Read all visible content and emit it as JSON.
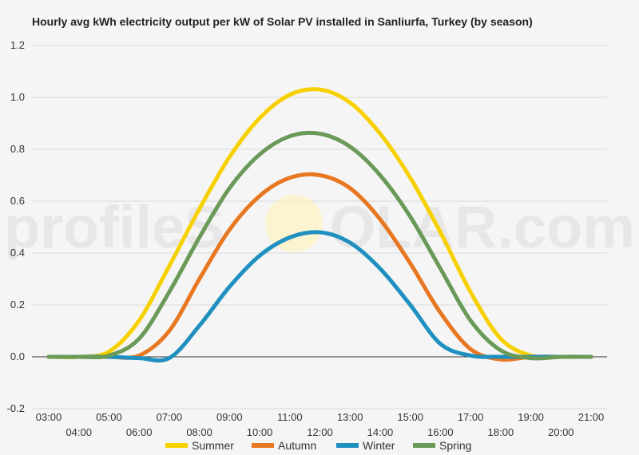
{
  "chart_data": {
    "type": "line",
    "title": "Hourly avg kWh electricity output per kW of Solar PV installed in Sanliurfa, Turkey (by season)",
    "watermark": "profileSOLAR.com",
    "x": [
      "03:00",
      "04:00",
      "05:00",
      "06:00",
      "07:00",
      "08:00",
      "09:00",
      "10:00",
      "11:00",
      "12:00",
      "13:00",
      "14:00",
      "15:00",
      "16:00",
      "17:00",
      "18:00",
      "19:00",
      "20:00",
      "21:00"
    ],
    "ylim": [
      -0.2,
      1.2
    ],
    "yticks": [
      1.2,
      1.0,
      0.8,
      0.6,
      0.4,
      0.2,
      0.0,
      -0.2
    ],
    "ytick_labels": [
      "1.2",
      "1.0",
      "0.8",
      "0.6",
      "0.4",
      "0.2",
      "0.0",
      "-0.2"
    ],
    "grid": true,
    "legend_position": "bottom",
    "series": [
      {
        "name": "Summer",
        "color": "#f7d000",
        "values": [
          0,
          0,
          0.02,
          0.14,
          0.35,
          0.57,
          0.77,
          0.92,
          1.01,
          1.03,
          0.98,
          0.86,
          0.69,
          0.48,
          0.25,
          0.07,
          0.005,
          0,
          0
        ]
      },
      {
        "name": "Autumn",
        "color": "#e87722",
        "values": [
          0,
          0,
          0,
          0.005,
          0.1,
          0.3,
          0.49,
          0.62,
          0.69,
          0.7,
          0.65,
          0.53,
          0.36,
          0.17,
          0.03,
          -0.01,
          0,
          0,
          0
        ]
      },
      {
        "name": "Winter",
        "color": "#1f90c0",
        "values": [
          0,
          0,
          0,
          -0.005,
          -0.005,
          0.12,
          0.27,
          0.39,
          0.46,
          0.48,
          0.44,
          0.34,
          0.2,
          0.05,
          0.005,
          0,
          0,
          0,
          0
        ]
      },
      {
        "name": "Spring",
        "color": "#6a9a58",
        "values": [
          0,
          0,
          0.005,
          0.07,
          0.25,
          0.46,
          0.65,
          0.78,
          0.85,
          0.86,
          0.81,
          0.7,
          0.54,
          0.34,
          0.14,
          0.025,
          -0.005,
          0,
          0
        ]
      }
    ]
  }
}
